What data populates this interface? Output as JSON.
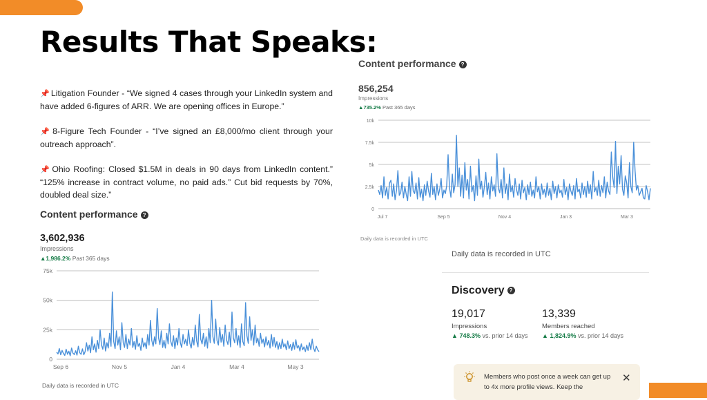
{
  "slide": {
    "title": "Results That Speaks:",
    "accent_color": "#f28c28"
  },
  "testimonials": [
    {
      "icon": "pushpin-icon",
      "text": "Litigation Founder - “We signed 4 cases through your LinkedIn system and have added 6-figures of ARR. We are opening offices in Europe.”"
    },
    {
      "icon": "pushpin-icon",
      "text": "8-Figure Tech Founder - “I’ve signed an £8,000/mo client through your outreach approach”."
    },
    {
      "icon": "pushpin-icon",
      "text": "Ohio Roofing: Closed $1.5M in deals in 90 days from LinkedIn content.” “125% increase in contract volume, no paid ads.” Cut bid requests by 70%, doubled deal size.”"
    }
  ],
  "card1": {
    "title": "Content performance",
    "value": "856,254",
    "label": "Impressions",
    "trend_value": "735.2%",
    "trend_text": "Past 365 days",
    "footer": "Daily data is recorded in UTC"
  },
  "card2": {
    "title": "Content performance",
    "value": "3,602,936",
    "label": "Impressions",
    "trend_value": "1,986.2%",
    "trend_text": "Past 365 days",
    "footer": "Daily data is recorded in UTC"
  },
  "discovery": {
    "top_footer": "Daily data is recorded in UTC",
    "title": "Discovery",
    "stats": [
      {
        "value": "19,017",
        "label": "Impressions",
        "trend_value": "748.3%",
        "trend_text": "vs. prior 14 days"
      },
      {
        "value": "13,339",
        "label": "Members reached",
        "trend_value": "1,824.9%",
        "trend_text": "vs. prior 14 days"
      }
    ],
    "notice": "Members who post once a week can get up to 4x more profile views. Keep the"
  },
  "chart_data": [
    {
      "type": "line",
      "ylim": [
        0,
        10000
      ],
      "yticks": [
        "0",
        "2.5k",
        "5k",
        "7.5k",
        "10k"
      ],
      "xticks": [
        "Jul 7",
        "Sep 5",
        "Nov 4",
        "Jan 3",
        "Mar 3"
      ],
      "color": "#4a90d9",
      "values": [
        2100,
        1600,
        2600,
        1200,
        3600,
        1500,
        2400,
        1100,
        2900,
        3200,
        1400,
        2800,
        1000,
        2100,
        4300,
        1500,
        1800,
        3000,
        1200,
        2500,
        1600,
        900,
        3600,
        1400,
        4200,
        2000,
        1700,
        2900,
        1100,
        3500,
        1300,
        2200,
        900,
        2700,
        1500,
        3100,
        2000,
        1300,
        4000,
        1600,
        2500,
        1000,
        2800,
        1500,
        2200,
        3400,
        1200,
        2100,
        1700,
        2600,
        6100,
        2400,
        1300,
        3900,
        1800,
        2700,
        8300,
        2500,
        4600,
        1400,
        3800,
        1200,
        5200,
        2100,
        3300,
        1100,
        4800,
        1900,
        2600,
        900,
        3700,
        1500,
        5600,
        2200,
        3100,
        1300,
        2500,
        4100,
        1600,
        2900,
        1100,
        3600,
        2000,
        2700,
        1400,
        6200,
        2300,
        1800,
        3300,
        1200,
        4600,
        1700,
        2800,
        1000,
        3900,
        1900,
        2600,
        1300,
        3400,
        2200,
        1500,
        2800,
        1100,
        3200,
        1800,
        2400,
        1000,
        2700,
        1600,
        3000,
        1400,
        2100,
        1200,
        3600,
        1900,
        2500,
        1100,
        2800,
        1600,
        2200,
        1300,
        2900,
        1500,
        2300,
        1000,
        3100,
        1700,
        2500,
        1200,
        2700,
        1800,
        2100,
        1300,
        3300,
        1600,
        2400,
        1000,
        2800,
        2000,
        1500,
        2600,
        1100,
        3400,
        1900,
        2200,
        1200,
        2900,
        1600,
        2500,
        1300,
        3100,
        1700,
        2700,
        1100,
        4200,
        1900,
        2400,
        1500,
        3200,
        1400,
        2600,
        1800,
        3600,
        1200,
        3000,
        2000,
        1600,
        6400,
        3600,
        2400,
        7600,
        1700,
        4800,
        2800,
        6000,
        2200,
        1500,
        3700,
        2900,
        1200,
        5200,
        2500,
        1800,
        7500,
        4300,
        2100,
        2600,
        1500,
        1900,
        2300,
        1200,
        1100,
        2600,
        1900,
        1000,
        2300
      ]
    },
    {
      "type": "line",
      "ylim": [
        0,
        75000
      ],
      "yticks": [
        "0",
        "25k",
        "50k",
        "75k"
      ],
      "xticks": [
        "Sep 6",
        "Nov 5",
        "Jan 4",
        "Mar 4",
        "May 3"
      ],
      "color": "#4a90d9",
      "values": [
        6000,
        4500,
        9000,
        3800,
        7500,
        5000,
        3200,
        8500,
        4200,
        6800,
        3000,
        9500,
        5200,
        4000,
        7200,
        3500,
        11000,
        5500,
        4200,
        8800,
        3800,
        6500,
        14000,
        7000,
        12000,
        5500,
        19000,
        8000,
        13000,
        6000,
        16000,
        9000,
        25000,
        12000,
        8500,
        18000,
        7000,
        14000,
        9500,
        22000,
        11000,
        57000,
        15000,
        9000,
        24000,
        12000,
        19000,
        8000,
        31000,
        14000,
        10000,
        21000,
        9000,
        17000,
        12000,
        26000,
        10000,
        15000,
        8500,
        20000,
        11000,
        13500,
        7500,
        18000,
        10500,
        14000,
        9000,
        21000,
        12000,
        33000,
        16000,
        11000,
        19000,
        13000,
        43000,
        18000,
        12500,
        24000,
        10000,
        16000,
        9500,
        22000,
        13000,
        30000,
        15000,
        11000,
        20000,
        9000,
        18000,
        12000,
        26000,
        14000,
        10000,
        21000,
        13000,
        17000,
        11500,
        25000,
        13500,
        9500,
        18500,
        12000,
        29000,
        15500,
        10500,
        38000,
        17000,
        13000,
        22000,
        11000,
        19000,
        9500,
        26000,
        14000,
        50000,
        19000,
        13500,
        34000,
        16000,
        12000,
        27000,
        14500,
        21000,
        11000,
        29000,
        16500,
        12500,
        23000,
        10500,
        40000,
        18000,
        14000,
        26000,
        12000,
        20000,
        10000,
        30000,
        15000,
        11500,
        48000,
        20000,
        13500,
        36000,
        16000,
        25000,
        12000,
        29000,
        14000,
        18000,
        11000,
        22000,
        13500,
        17000,
        10500,
        19000,
        12000,
        16000,
        9500,
        21000,
        11000,
        18500,
        10000,
        15000,
        8500,
        14000,
        9000,
        17000,
        10500,
        13000,
        8000,
        15500,
        9000,
        12500,
        7500,
        14500,
        8500,
        16500,
        9500,
        11500,
        7000,
        13000,
        8000,
        10500,
        6500,
        12000,
        7500,
        14000,
        8000,
        17000,
        9500,
        6500,
        11000,
        8000,
        6500
      ]
    }
  ]
}
